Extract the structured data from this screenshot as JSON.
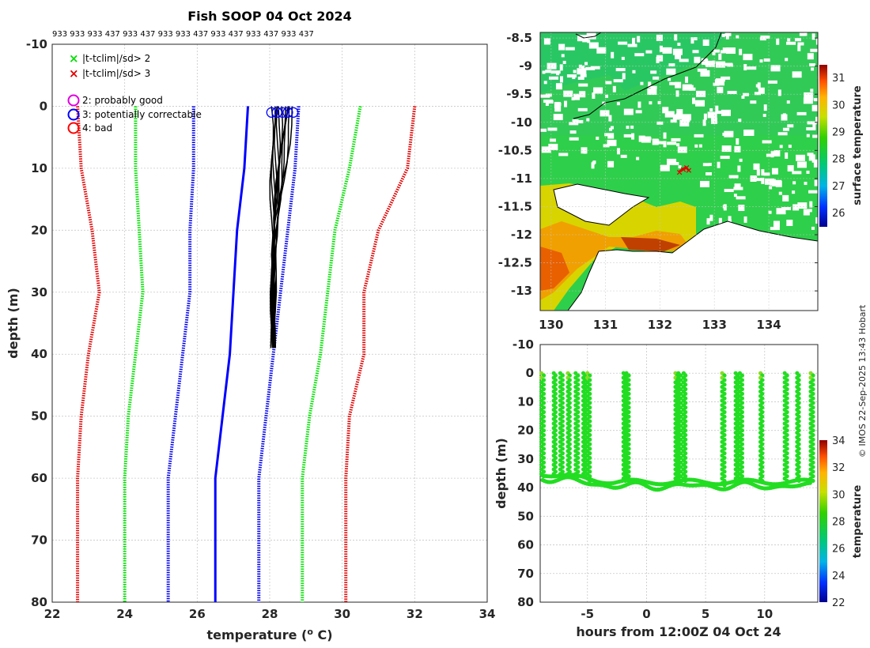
{
  "header": {
    "title": "Fish SOOP 04 Oct 2024",
    "profile_ids": "933 933 933 437 933 437 933 933 437 933 437 933 437 933 437"
  },
  "colors": {
    "sd2": "#00e000",
    "sd3": "#e00000",
    "std1": "#0000ee",
    "mean": "#0000ff",
    "profile": "#000000",
    "flag_good": "#e000e0",
    "flag_correctable": "#0000ff",
    "flag_bad": "#ff0000"
  },
  "legend": {
    "sd2": "|t-tclim|/sd> 2",
    "sd3": "|t-tclim|/sd> 3",
    "flag2": "2: probably good",
    "flag3": "3: potentially correctable",
    "flag4": "4: bad"
  },
  "credit": "© IMOS 22-Sep-2025 13:43 Hobart",
  "chart_data": [
    {
      "type": "line",
      "name": "profile-plot",
      "title": "Fish SOOP 04 Oct 2024",
      "xlabel": "temperature (",
      "xlabel_sup": "o",
      "xlabel_unit": " C)",
      "ylabel": "depth (m)",
      "xlim": [
        22,
        34
      ],
      "ylim": [
        -10,
        80
      ],
      "xticks": [
        22,
        24,
        26,
        28,
        30,
        32,
        34
      ],
      "yticks": [
        -10,
        0,
        10,
        20,
        30,
        40,
        50,
        60,
        70,
        80
      ],
      "series": [
        {
          "name": "clim -3sd",
          "style": "dotted",
          "color_key": "sd3",
          "x": [
            22.7,
            22.8,
            23.1,
            23.3,
            23.0,
            22.8,
            22.7,
            22.7
          ],
          "y": [
            0,
            10,
            20,
            30,
            40,
            50,
            60,
            80
          ]
        },
        {
          "name": "clim -2sd",
          "style": "dotted",
          "color_key": "sd2",
          "x": [
            24.3,
            24.3,
            24.4,
            24.5,
            24.3,
            24.1,
            24.0,
            24.0
          ],
          "y": [
            0,
            10,
            20,
            30,
            40,
            50,
            60,
            80
          ]
        },
        {
          "name": "clim -1sd",
          "style": "dotted",
          "color_key": "std1",
          "x": [
            25.9,
            25.9,
            25.8,
            25.8,
            25.6,
            25.4,
            25.2,
            25.2
          ],
          "y": [
            0,
            10,
            20,
            30,
            40,
            50,
            60,
            80
          ]
        },
        {
          "name": "clim mean",
          "style": "solid",
          "color_key": "mean",
          "x": [
            27.4,
            27.3,
            27.1,
            27.0,
            26.9,
            26.7,
            26.5,
            26.5
          ],
          "y": [
            0,
            10,
            20,
            30,
            40,
            50,
            60,
            80
          ]
        },
        {
          "name": "clim +1sd",
          "style": "dotted",
          "color_key": "std1",
          "x": [
            28.8,
            28.7,
            28.5,
            28.3,
            28.1,
            27.9,
            27.7,
            27.7
          ],
          "y": [
            0,
            10,
            20,
            30,
            40,
            50,
            60,
            80
          ]
        },
        {
          "name": "clim +2sd",
          "style": "dotted",
          "color_key": "sd2",
          "x": [
            30.5,
            30.2,
            29.8,
            29.6,
            29.4,
            29.1,
            28.9,
            28.9
          ],
          "y": [
            0,
            10,
            20,
            30,
            40,
            50,
            60,
            80
          ]
        },
        {
          "name": "clim +3sd",
          "style": "dotted",
          "color_key": "sd3",
          "x": [
            32.0,
            31.8,
            31.0,
            30.6,
            30.6,
            30.2,
            30.1,
            30.1
          ],
          "y": [
            0,
            10,
            20,
            30,
            40,
            50,
            60,
            80
          ]
        }
      ],
      "profiles": {
        "depth_max": 39,
        "start_temps": [
          28.05,
          28.1,
          28.15,
          28.2,
          28.25,
          28.3,
          28.35,
          28.4,
          28.45,
          28.5,
          28.55,
          28.6,
          28.65
        ],
        "end_temps": [
          28.05,
          28.08,
          28.1,
          28.12,
          28.15,
          28.1,
          28.07,
          28.13,
          28.09,
          28.11,
          28.06,
          28.14,
          28.1
        ]
      },
      "flag_markers": {
        "depth": 1,
        "x": [
          28.05,
          28.2,
          28.35,
          28.5,
          28.65
        ]
      }
    },
    {
      "type": "heatmap",
      "name": "sst-map",
      "xlim": [
        129.8,
        134.9
      ],
      "ylim": [
        -13.35,
        -8.4
      ],
      "xticks": [
        130,
        131,
        132,
        133,
        134
      ],
      "yticks": [
        -8.5,
        -9,
        -9.5,
        -10,
        -10.5,
        -11,
        -11.5,
        -12,
        -12.5,
        -13
      ],
      "colorbar_label": "surface temperature",
      "colorbar_ticks": [
        26,
        27,
        28,
        29,
        30,
        31
      ],
      "colorbar_range": [
        25.5,
        31.5
      ],
      "ship_track": {
        "lon": [
          132.35,
          132.42,
          132.48,
          132.52
        ],
        "lat": [
          -10.88,
          -10.83,
          -10.8,
          -10.85
        ]
      }
    },
    {
      "type": "scatter",
      "name": "time-depth",
      "xlabel": "hours from 12:00Z 04 Oct 24",
      "ylabel": "depth (m)",
      "xlim": [
        -9,
        14.5
      ],
      "ylim": [
        -10,
        80
      ],
      "xticks": [
        -5,
        0,
        5,
        10
      ],
      "yticks": [
        -10,
        0,
        10,
        20,
        30,
        40,
        50,
        60,
        70,
        80
      ],
      "colorbar_label": "temperature",
      "colorbar_ticks": [
        22,
        24,
        26,
        28,
        30,
        32,
        34
      ],
      "colorbar_range": [
        22,
        34
      ],
      "casts": [
        -8.8,
        -7.8,
        -7.2,
        -6.6,
        -5.9,
        -5.3,
        -4.9,
        -1.9,
        -1.6,
        2.5,
        2.8,
        3.2,
        6.5,
        7.6,
        8.0,
        9.7,
        11.8,
        12.8,
        14.0
      ],
      "bottom_depth_start": 35,
      "bottom_depth_mid": 38
    }
  ]
}
